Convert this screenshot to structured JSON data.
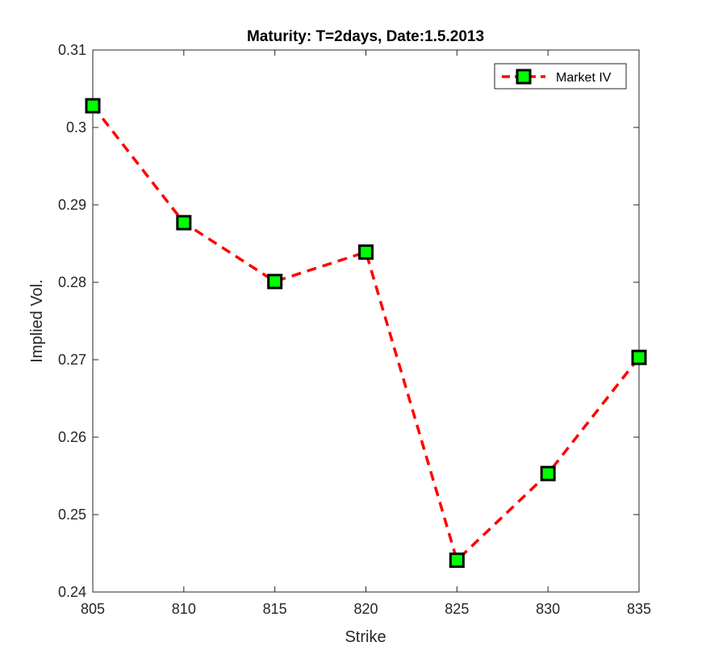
{
  "chart_data": {
    "type": "line",
    "title": "Maturity: T=2days, Date:1.5.2013",
    "xlabel": "Strike",
    "ylabel": "Implied Vol.",
    "xlim": [
      805,
      835
    ],
    "ylim": [
      0.24,
      0.31
    ],
    "xticks": [
      805,
      810,
      815,
      820,
      825,
      830,
      835
    ],
    "xtick_labels": [
      "805",
      "810",
      "815",
      "820",
      "825",
      "830",
      "835"
    ],
    "yticks": [
      0.24,
      0.25,
      0.26,
      0.27,
      0.28,
      0.29,
      0.3,
      0.31
    ],
    "ytick_labels": [
      "0.24",
      "0.25",
      "0.26",
      "0.27",
      "0.28",
      "0.29",
      "0.3",
      "0.31"
    ],
    "grid": false,
    "legend_position": "top-right",
    "series": [
      {
        "name": "Market IV",
        "x": [
          805,
          810,
          815,
          820,
          825,
          830,
          835
        ],
        "y": [
          0.3028,
          0.2877,
          0.2801,
          0.2839,
          0.2441,
          0.2553,
          0.2703
        ],
        "line_color": "#ff0000",
        "line_style": "dashed",
        "marker": "square",
        "marker_face_color": "#00ff00",
        "marker_edge_color": "#000000"
      }
    ]
  }
}
